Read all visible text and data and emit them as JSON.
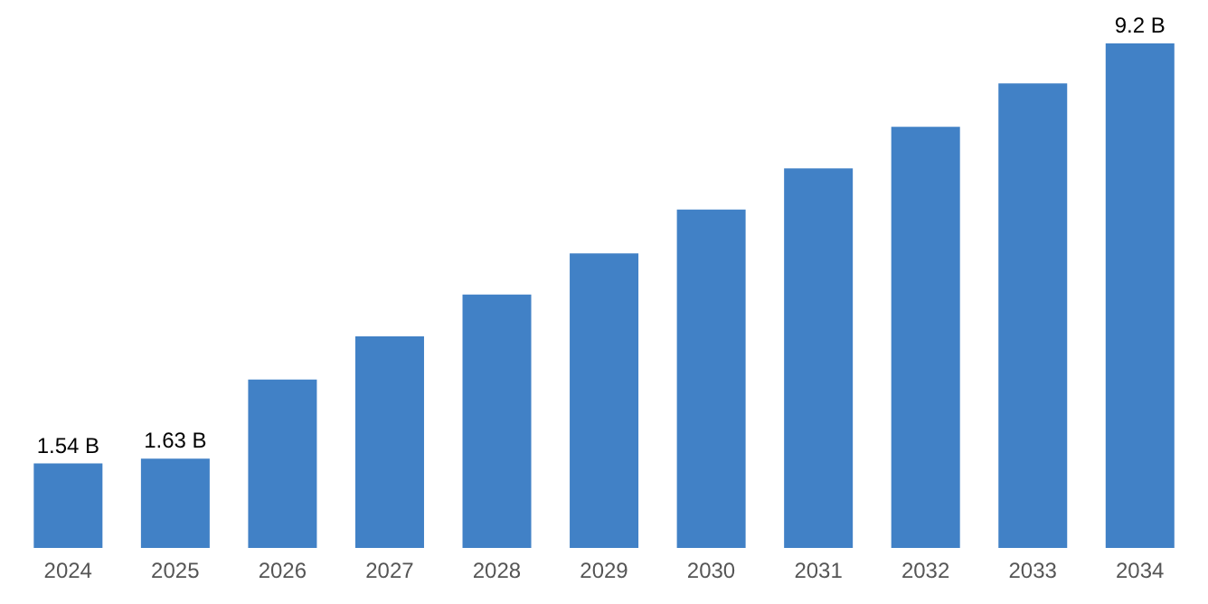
{
  "chart_data": {
    "type": "bar",
    "categories": [
      "2024",
      "2025",
      "2026",
      "2027",
      "2028",
      "2029",
      "2030",
      "2031",
      "2032",
      "2033",
      "2034"
    ],
    "values": [
      1.54,
      1.63,
      3.07,
      3.86,
      4.62,
      5.37,
      6.17,
      6.92,
      7.68,
      8.47,
      9.2
    ],
    "color": "#4181c6",
    "value_labels": [
      "1.54 B",
      "1.63 B",
      null,
      null,
      null,
      null,
      null,
      null,
      null,
      null,
      "9.2 B"
    ],
    "tick_labels": "x",
    "grid": false,
    "legend": false
  }
}
